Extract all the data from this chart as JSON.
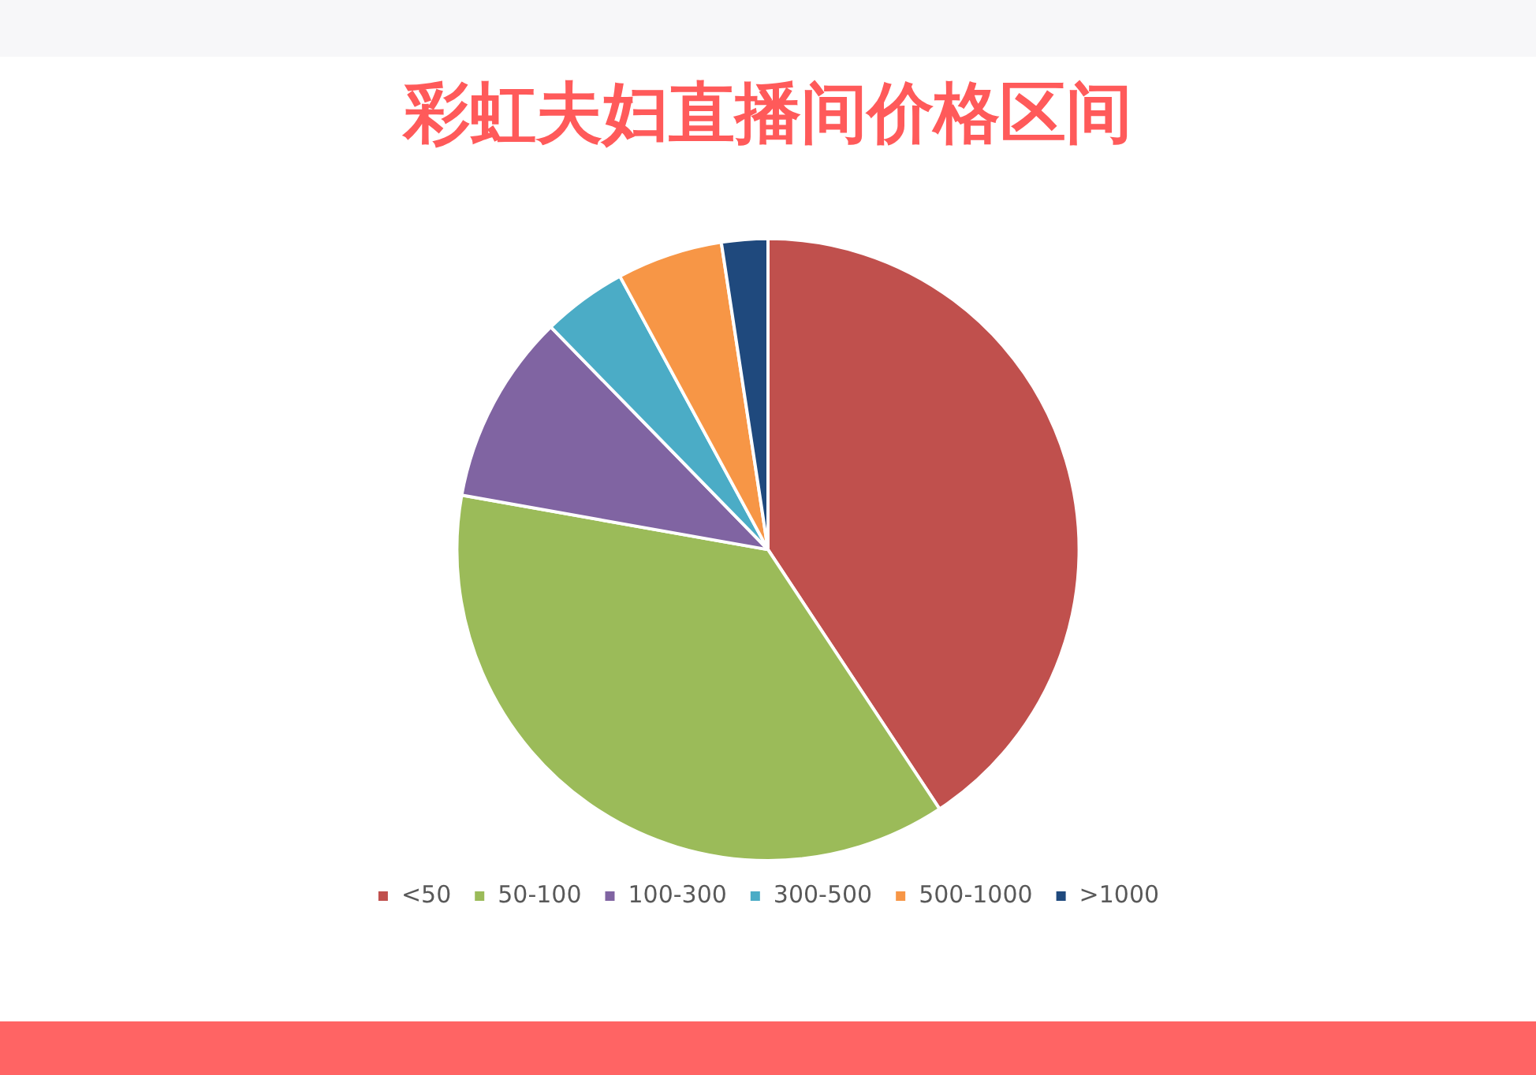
{
  "chart_data": {
    "type": "pie",
    "title": "彩虹夫妇直播间价格区间",
    "categories": [
      "<50",
      "50-100",
      "100-300",
      "300-500",
      "500-1000",
      ">1000"
    ],
    "values": [
      40.7,
      37.1,
      9.9,
      4.4,
      5.5,
      2.4
    ],
    "colors": [
      "#c0504d",
      "#9bbb59",
      "#8064a2",
      "#4bacc6",
      "#f79646",
      "#1f497d"
    ],
    "legend": "bottom"
  }
}
